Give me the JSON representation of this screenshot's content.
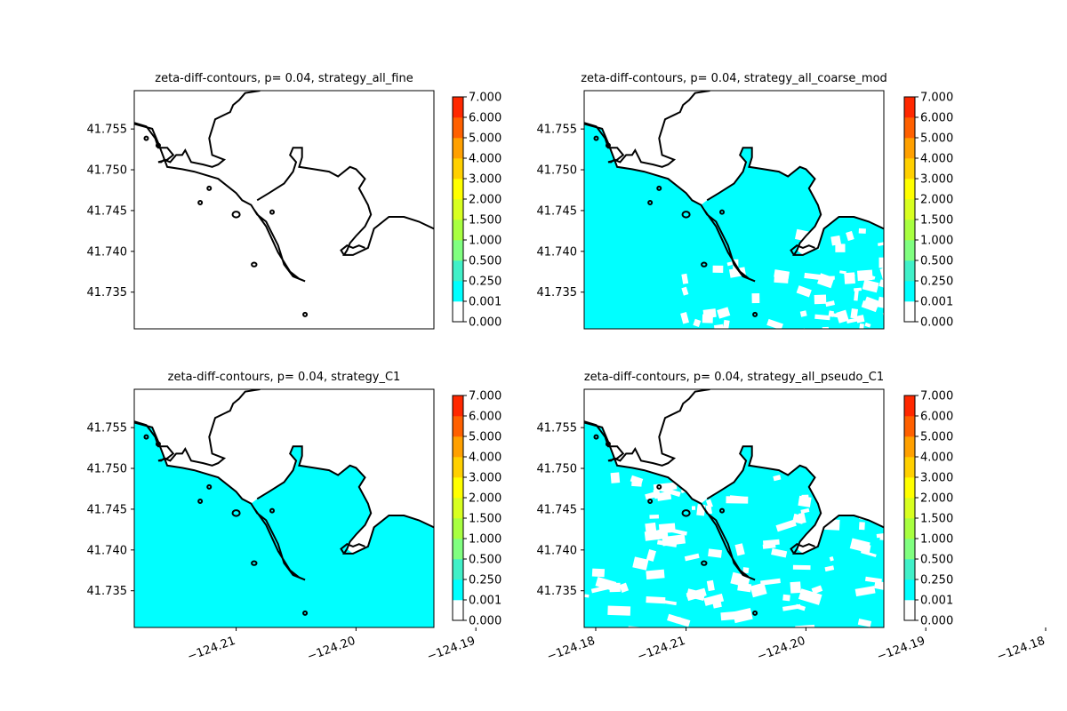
{
  "figure": {
    "background": "#ffffff"
  },
  "colorbar": {
    "levels": [
      0.0,
      0.001,
      0.25,
      0.5,
      1.0,
      1.5,
      2.0,
      3.0,
      4.0,
      5.0,
      6.0,
      7.0
    ],
    "tick_labels": [
      "0.000",
      "0.001",
      "0.250",
      "0.500",
      "1.000",
      "1.500",
      "2.000",
      "3.000",
      "4.000",
      "5.000",
      "6.000",
      "7.000"
    ],
    "colors": [
      "#ffffff",
      "#00ffff",
      "#40f0c8",
      "#80ff80",
      "#a8ff40",
      "#d8ff20",
      "#ffff00",
      "#ffd000",
      "#ffa000",
      "#ff6000",
      "#ff2800"
    ]
  },
  "map_colors": {
    "water_fill": "#00ffff",
    "land_fill": "#ffffff",
    "coastline": "#000000"
  },
  "chart_data": [
    {
      "type": "heatmap",
      "title": "zeta-diff-contours, p= 0.04, strategy_all_fine",
      "fill": "none",
      "y_ticks": [
        "41.755",
        "41.750",
        "41.745",
        "41.740",
        "41.735"
      ],
      "x_ticks": [],
      "xlim": [
        -124.2185,
        -124.1935
      ],
      "ylim": [
        41.7305,
        41.7597
      ],
      "clim": [
        0,
        7
      ]
    },
    {
      "type": "heatmap",
      "title": "zeta-diff-contours, p= 0.04, strategy_all_coarse_mod",
      "fill": "patchy",
      "y_ticks": [
        "41.755",
        "41.750",
        "41.745",
        "41.740",
        "41.735"
      ],
      "x_ticks": [],
      "xlim": [
        -124.2185,
        -124.1935
      ],
      "ylim": [
        41.7305,
        41.7597
      ],
      "clim": [
        0,
        7
      ]
    },
    {
      "type": "heatmap",
      "title": "zeta-diff-contours, p= 0.04, strategy_C1",
      "fill": "full",
      "y_ticks": [
        "41.755",
        "41.750",
        "41.745",
        "41.740",
        "41.735"
      ],
      "x_ticks": [
        "−124.21",
        "−124.20",
        "−124.19",
        "−124.18"
      ],
      "xlim": [
        -124.2185,
        -124.1935
      ],
      "ylim": [
        41.7305,
        41.7597
      ],
      "clim": [
        0,
        7
      ]
    },
    {
      "type": "heatmap",
      "title": "zeta-diff-contours, p= 0.04, strategy_all_pseudo_C1",
      "fill": "speckled",
      "y_ticks": [
        "41.755",
        "41.750",
        "41.745",
        "41.740",
        "41.735"
      ],
      "x_ticks": [
        "−124.21",
        "−124.20",
        "−124.19",
        "−124.18"
      ],
      "xlim": [
        -124.2185,
        -124.1935
      ],
      "ylim": [
        41.7305,
        41.7597
      ],
      "clim": [
        0,
        7
      ]
    }
  ]
}
